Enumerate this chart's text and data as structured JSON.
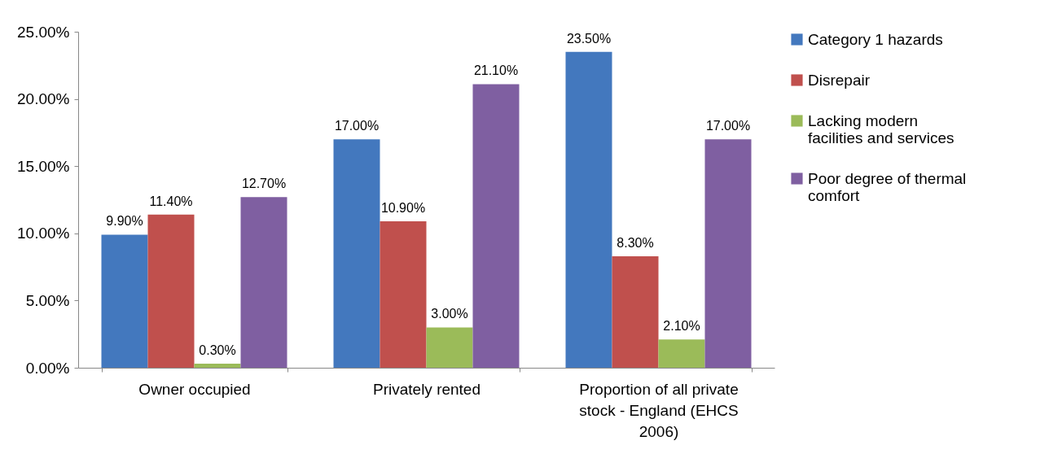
{
  "chart_data": {
    "type": "bar",
    "categories": [
      "Owner occupied",
      "Privately rented",
      "Proportion of all private stock - England (EHCS 2006)"
    ],
    "series": [
      {
        "name": "Category 1 hazards",
        "color": "#4378be",
        "values": [
          9.9,
          17.0,
          23.5
        ],
        "value_labels": [
          "9.90%",
          "17.00%",
          "23.50%"
        ]
      },
      {
        "name": "Disrepair",
        "color": "#c0504d",
        "values": [
          11.4,
          10.9,
          8.3
        ],
        "value_labels": [
          "11.40%",
          "10.90%",
          "8.30%"
        ]
      },
      {
        "name": "Lacking modern facilities and services",
        "color": "#9bbb59",
        "values": [
          0.3,
          3.0,
          2.1
        ],
        "value_labels": [
          "0.30%",
          "3.00%",
          "2.10%"
        ]
      },
      {
        "name": "Poor degree of thermal comfort",
        "color": "#7f5fa1",
        "values": [
          12.7,
          21.1,
          17.0
        ],
        "value_labels": [
          "12.70%",
          "21.10%",
          "17.00%"
        ]
      }
    ],
    "ylim": [
      0,
      25
    ],
    "yticks": [
      {
        "value": 0,
        "label": "0.00%"
      },
      {
        "value": 5,
        "label": "5.00%"
      },
      {
        "value": 10,
        "label": "10.00%"
      },
      {
        "value": 15,
        "label": "15.00%"
      },
      {
        "value": 20,
        "label": "20.00%"
      },
      {
        "value": 25,
        "label": "25.00%"
      }
    ],
    "grid": false,
    "legend": "right"
  }
}
